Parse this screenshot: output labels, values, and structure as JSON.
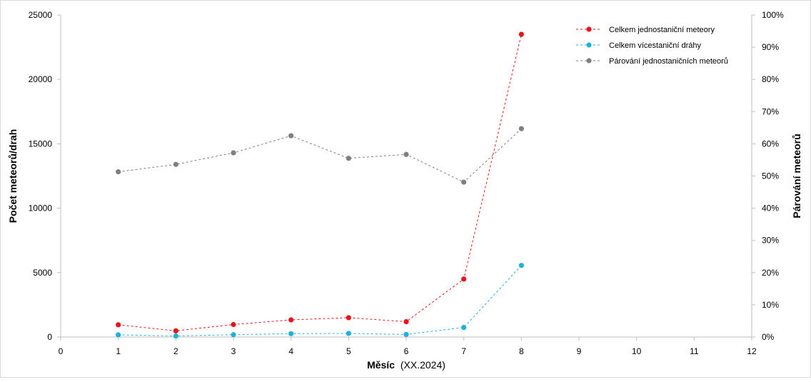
{
  "chart_data": {
    "type": "line",
    "xlabel": "Měsíc",
    "xlabel_suffix": "(XX.2024)",
    "ylabel": "Počet meteorů/drah",
    "y2label": "Párování meteorů",
    "xlim": [
      0,
      12
    ],
    "ylim": [
      0,
      25000
    ],
    "y2lim": [
      0,
      1
    ],
    "x_ticks": [
      "0",
      "1",
      "2",
      "3",
      "4",
      "5",
      "6",
      "7",
      "8",
      "9",
      "10",
      "11",
      "12"
    ],
    "y_ticks": [
      "0",
      "5000",
      "10000",
      "15000",
      "20000",
      "25000"
    ],
    "y2_ticks": [
      "0%",
      "10%",
      "20%",
      "30%",
      "40%",
      "50%",
      "60%",
      "70%",
      "80%",
      "90%",
      "100%"
    ],
    "grid": false,
    "legend_position": "top-right",
    "x": [
      1,
      2,
      3,
      4,
      5,
      6,
      7,
      8
    ],
    "series": [
      {
        "name": "Celkem jednostaniční meteory",
        "axis": "left",
        "color": "#e8141c",
        "values": [
          950,
          480,
          970,
          1330,
          1500,
          1190,
          4500,
          23500
        ]
      },
      {
        "name": "Celkem vícestaniční dráhy",
        "axis": "left",
        "color": "#1fb0e0",
        "values": [
          170,
          80,
          180,
          260,
          280,
          200,
          740,
          5560
        ]
      },
      {
        "name": "Párování jednostaničních meteorů",
        "axis": "right",
        "color": "#7f7f7f",
        "values": [
          0.513,
          0.536,
          0.572,
          0.625,
          0.555,
          0.567,
          0.481,
          0.647
        ]
      }
    ]
  }
}
